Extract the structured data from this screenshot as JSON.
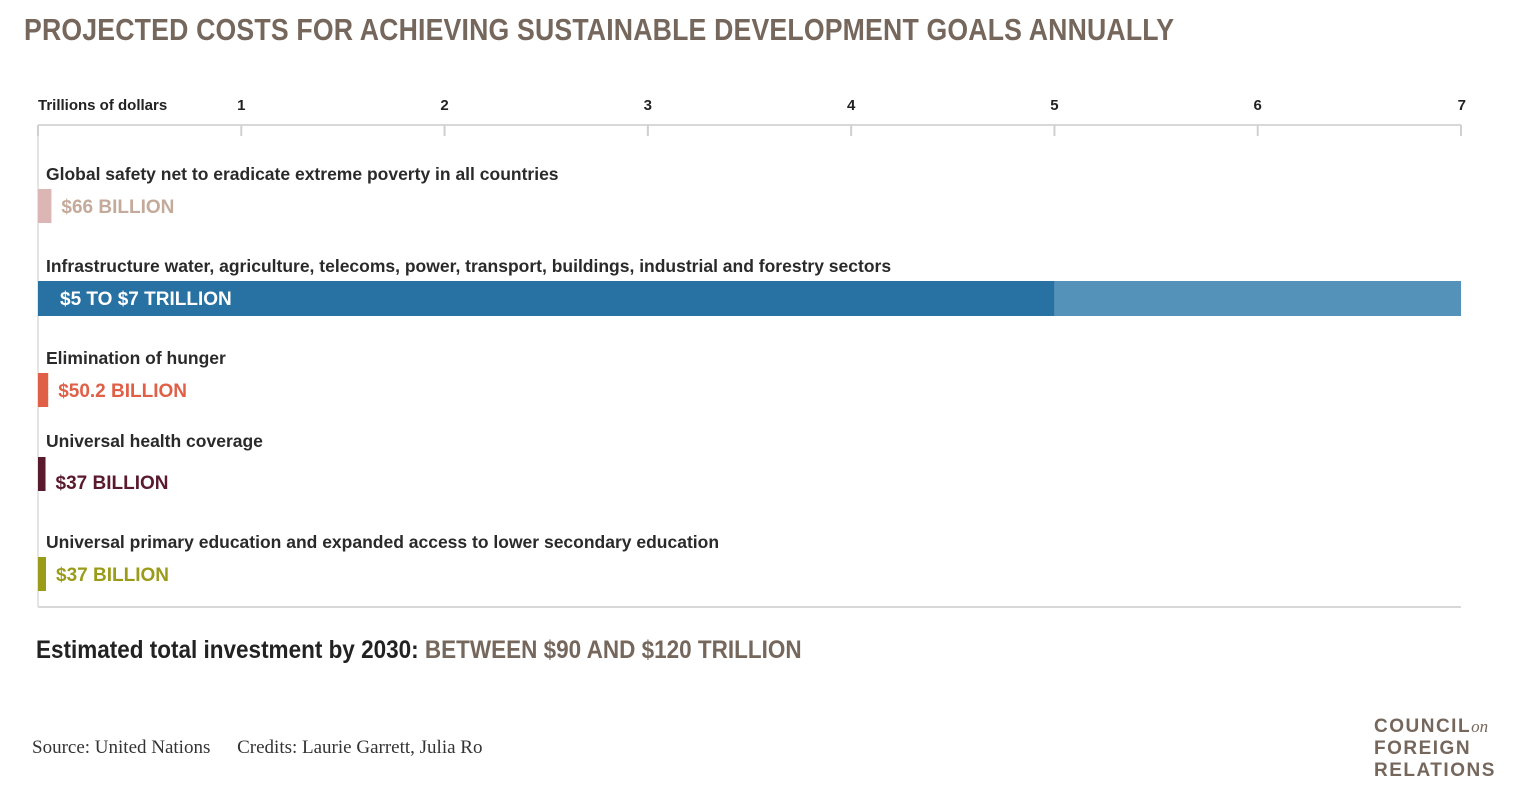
{
  "title": "PROJECTED COSTS FOR ACHIEVING SUSTAINABLE DEVELOPMENT GOALS ANNUALLY",
  "chart_data": {
    "type": "bar",
    "orientation": "horizontal",
    "xlabel": "Trillions of dollars",
    "xlim": [
      0,
      7
    ],
    "ticks": [
      1,
      2,
      3,
      4,
      5,
      6,
      7
    ],
    "grid": true,
    "categories": [
      {
        "label": "Global safety net to eradicate extreme poverty in all countries",
        "value_label": "$66 BILLION",
        "value_min": 0.066,
        "value_max": 0.066,
        "color": "#dcb6b4",
        "label_color": "#c4aa9a"
      },
      {
        "label": "Infrastructure water, agriculture, telecoms, power, transport, buildings, industrial and forestry sectors",
        "value_label": "$5 TO $7 TRILLION",
        "value_min": 5,
        "value_max": 7,
        "color": "#2872a3",
        "range_color": "#5592b9",
        "label_color": "#ffffff"
      },
      {
        "label": "Elimination of hunger",
        "value_label": "$50.2 BILLION",
        "value_min": 0.0502,
        "value_max": 0.0502,
        "color": "#e05f47",
        "label_color": "#e05f47"
      },
      {
        "label": "Universal health coverage",
        "value_label": "$37 BILLION",
        "value_min": 0.037,
        "value_max": 0.037,
        "color": "#5a1a2e",
        "label_color": "#5a1a2e"
      },
      {
        "label": "Universal primary education and expanded access to lower secondary education",
        "value_label": "$37 BILLION",
        "value_min": 0.037,
        "value_max": 0.037,
        "color": "#9b9b1a",
        "label_color": "#9b9b1a"
      }
    ]
  },
  "total": {
    "label": "Estimated total investment by 2030:",
    "value": "BETWEEN $90 AND $120 TRILLION"
  },
  "footer": {
    "source": "Source: United Nations",
    "credits": "Credits: Laurie Garrett, Julia Ro"
  },
  "logo": {
    "line1": "COUNCIL",
    "line1_suffix": "on",
    "line2": "FOREIGN",
    "line3": "RELATIONS"
  }
}
